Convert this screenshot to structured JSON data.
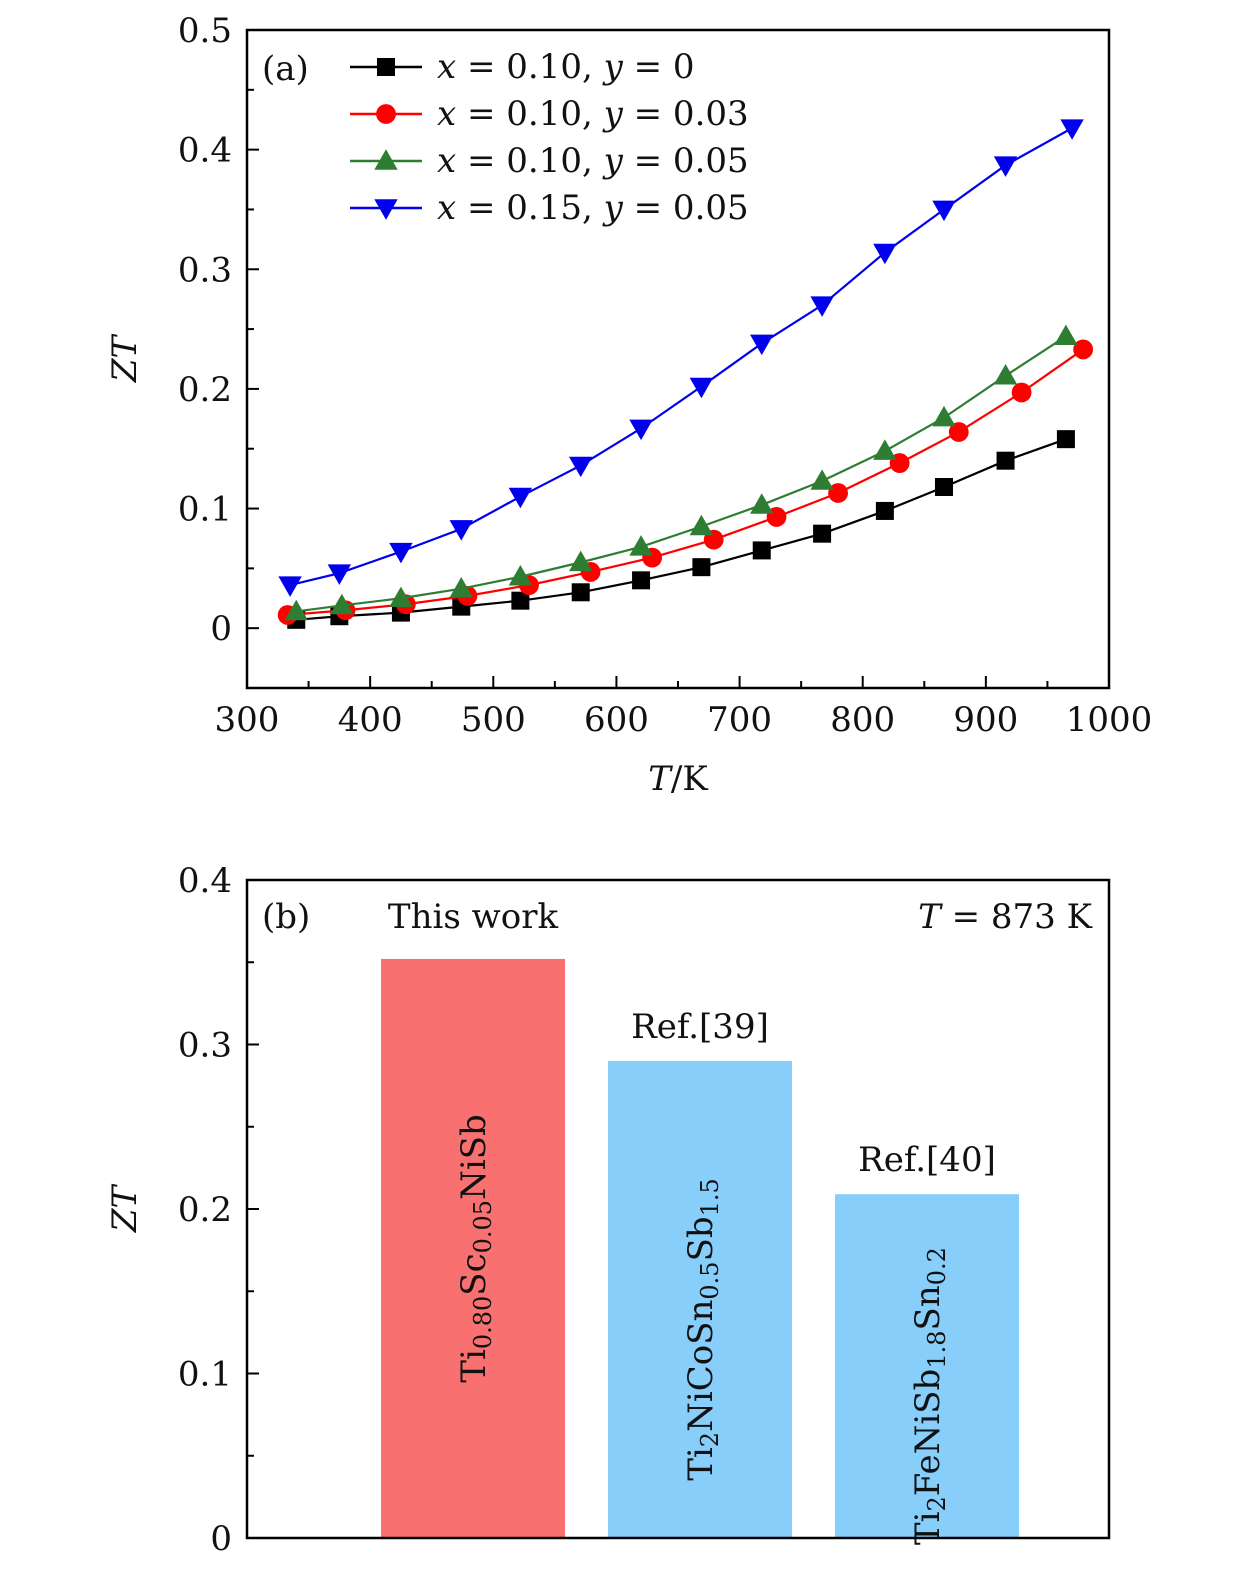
{
  "chart_data": [
    {
      "panel": "(a)",
      "type": "line",
      "xlabel_main": "T",
      "xlabel_sep": "/",
      "xlabel_unit": "K",
      "ylabel": "ZT",
      "xlim": [
        300,
        1000
      ],
      "ylim": [
        -0.05,
        0.5
      ],
      "xticks": [
        300,
        400,
        500,
        600,
        700,
        800,
        900,
        1000
      ],
      "yticks": [
        0,
        0.1,
        0.2,
        0.3,
        0.4,
        0.5
      ],
      "xtick_labels": [
        "300",
        "400",
        "500",
        "600",
        "700",
        "800",
        "900",
        "1000"
      ],
      "ytick_labels": [
        "0",
        "0.1",
        "0.2",
        "0.3",
        "0.4",
        "0.5"
      ],
      "series": [
        {
          "name": "x = 0.10, y = 0",
          "legend_parts": [
            "x",
            " = 0.10, ",
            "y",
            " = 0"
          ],
          "color": "#000000",
          "marker": "square",
          "x": [
            340,
            375,
            425,
            474,
            522,
            571,
            620,
            669,
            718,
            767,
            818,
            866,
            916,
            965
          ],
          "y": [
            0.007,
            0.01,
            0.013,
            0.018,
            0.023,
            0.03,
            0.04,
            0.051,
            0.065,
            0.079,
            0.098,
            0.118,
            0.14,
            0.158
          ]
        },
        {
          "name": "x = 0.10, y = 0.03",
          "legend_parts": [
            "x",
            " = 0.10, ",
            "y",
            " = 0.03"
          ],
          "color": "#ff0000",
          "marker": "circle",
          "x": [
            333,
            380,
            429,
            479,
            529,
            579,
            629,
            679,
            730,
            780,
            830,
            878,
            929,
            979
          ],
          "y": [
            0.011,
            0.015,
            0.02,
            0.027,
            0.036,
            0.047,
            0.059,
            0.074,
            0.093,
            0.113,
            0.138,
            0.164,
            0.197,
            0.233
          ]
        },
        {
          "name": "x = 0.10, y = 0.05",
          "legend_parts": [
            "x",
            " = 0.10, ",
            "y",
            " = 0.05"
          ],
          "color": "#2e7d32",
          "marker": "triangle-up",
          "x": [
            340,
            377,
            425,
            474,
            522,
            571,
            620,
            669,
            718,
            767,
            818,
            866,
            916,
            965
          ],
          "y": [
            0.014,
            0.019,
            0.025,
            0.033,
            0.043,
            0.055,
            0.068,
            0.085,
            0.103,
            0.123,
            0.148,
            0.176,
            0.211,
            0.244
          ]
        },
        {
          "name": "x = 0.15, y = 0.05",
          "legend_parts": [
            "x",
            " = 0.15, ",
            "y",
            " = 0.05"
          ],
          "color": "#0000ee",
          "marker": "triangle-down",
          "x": [
            335,
            375,
            425,
            474,
            522,
            571,
            620,
            669,
            718,
            767,
            818,
            866,
            916,
            970
          ],
          "y": [
            0.036,
            0.046,
            0.064,
            0.083,
            0.11,
            0.136,
            0.167,
            0.202,
            0.238,
            0.27,
            0.314,
            0.35,
            0.387,
            0.418
          ]
        }
      ]
    },
    {
      "panel": "(b)",
      "type": "bar",
      "ylabel": "ZT",
      "ylim": [
        0,
        0.4
      ],
      "yticks": [
        0,
        0.1,
        0.2,
        0.3,
        0.4
      ],
      "ytick_labels": [
        "0",
        "0.1",
        "0.2",
        "0.3",
        "0.4"
      ],
      "annotation_prefix": "T",
      "annotation_suffix": " = 873 K",
      "bars": [
        {
          "value": 0.352,
          "top_label": "This work",
          "color": "#f87070",
          "formula": [
            [
              "Ti",
              false
            ],
            [
              "0.80",
              true
            ],
            [
              "Sc",
              false
            ],
            [
              "0.05",
              true
            ],
            [
              "NiSb",
              false
            ]
          ]
        },
        {
          "value": 0.29,
          "top_label": "Ref.[39]",
          "color": "#87cefa",
          "formula": [
            [
              "Ti",
              false
            ],
            [
              "2",
              true
            ],
            [
              "NiCoSn",
              false
            ],
            [
              "0.5",
              true
            ],
            [
              "Sb",
              false
            ],
            [
              "1.5",
              true
            ]
          ]
        },
        {
          "value": 0.209,
          "top_label": "Ref.[40]",
          "color": "#87cefa",
          "formula": [
            [
              "Ti",
              false
            ],
            [
              "2",
              true
            ],
            [
              "FeNiSb",
              false
            ],
            [
              "1.8",
              true
            ],
            [
              "Sn",
              false
            ],
            [
              "0.2",
              true
            ]
          ]
        }
      ]
    }
  ]
}
